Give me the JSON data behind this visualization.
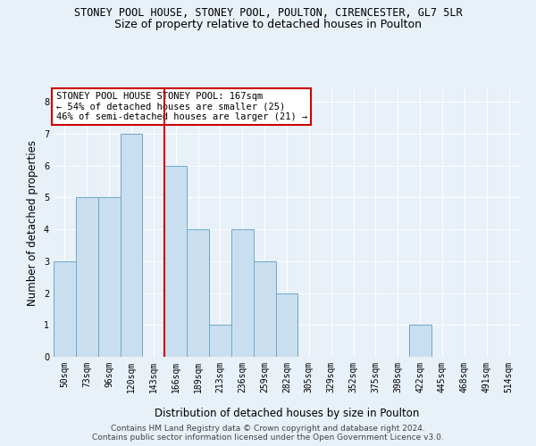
{
  "title1": "STONEY POOL HOUSE, STONEY POOL, POULTON, CIRENCESTER, GL7 5LR",
  "title2": "Size of property relative to detached houses in Poulton",
  "xlabel": "Distribution of detached houses by size in Poulton",
  "ylabel": "Number of detached properties",
  "bar_labels": [
    "50sqm",
    "73sqm",
    "96sqm",
    "120sqm",
    "143sqm",
    "166sqm",
    "189sqm",
    "213sqm",
    "236sqm",
    "259sqm",
    "282sqm",
    "305sqm",
    "329sqm",
    "352sqm",
    "375sqm",
    "398sqm",
    "422sqm",
    "445sqm",
    "468sqm",
    "491sqm",
    "514sqm"
  ],
  "bar_values": [
    3,
    5,
    5,
    7,
    0,
    6,
    4,
    1,
    4,
    3,
    2,
    0,
    0,
    0,
    0,
    0,
    1,
    0,
    0,
    0,
    0
  ],
  "bar_color": "#c9dff0",
  "bar_edge_color": "#6fa8c8",
  "marker_label_index": 5,
  "marker_color": "#cc0000",
  "annotation_lines": [
    "STONEY POOL HOUSE STONEY POOL: 167sqm",
    "← 54% of detached houses are smaller (25)",
    "46% of semi-detached houses are larger (21) →"
  ],
  "annotation_box_color": "#ffffff",
  "annotation_box_edge": "#cc0000",
  "ylim": [
    0,
    8.4
  ],
  "yticks": [
    0,
    1,
    2,
    3,
    4,
    5,
    6,
    7,
    8
  ],
  "footer1": "Contains HM Land Registry data © Crown copyright and database right 2024.",
  "footer2": "Contains public sector information licensed under the Open Government Licence v3.0.",
  "bg_color": "#e8f0f8",
  "plot_bg_color": "#e8f0f8",
  "grid_color": "#ffffff",
  "title1_fontsize": 8.5,
  "title2_fontsize": 9,
  "axis_label_fontsize": 8.5,
  "tick_fontsize": 7,
  "footer_fontsize": 6.5,
  "annotation_fontsize": 7.5
}
